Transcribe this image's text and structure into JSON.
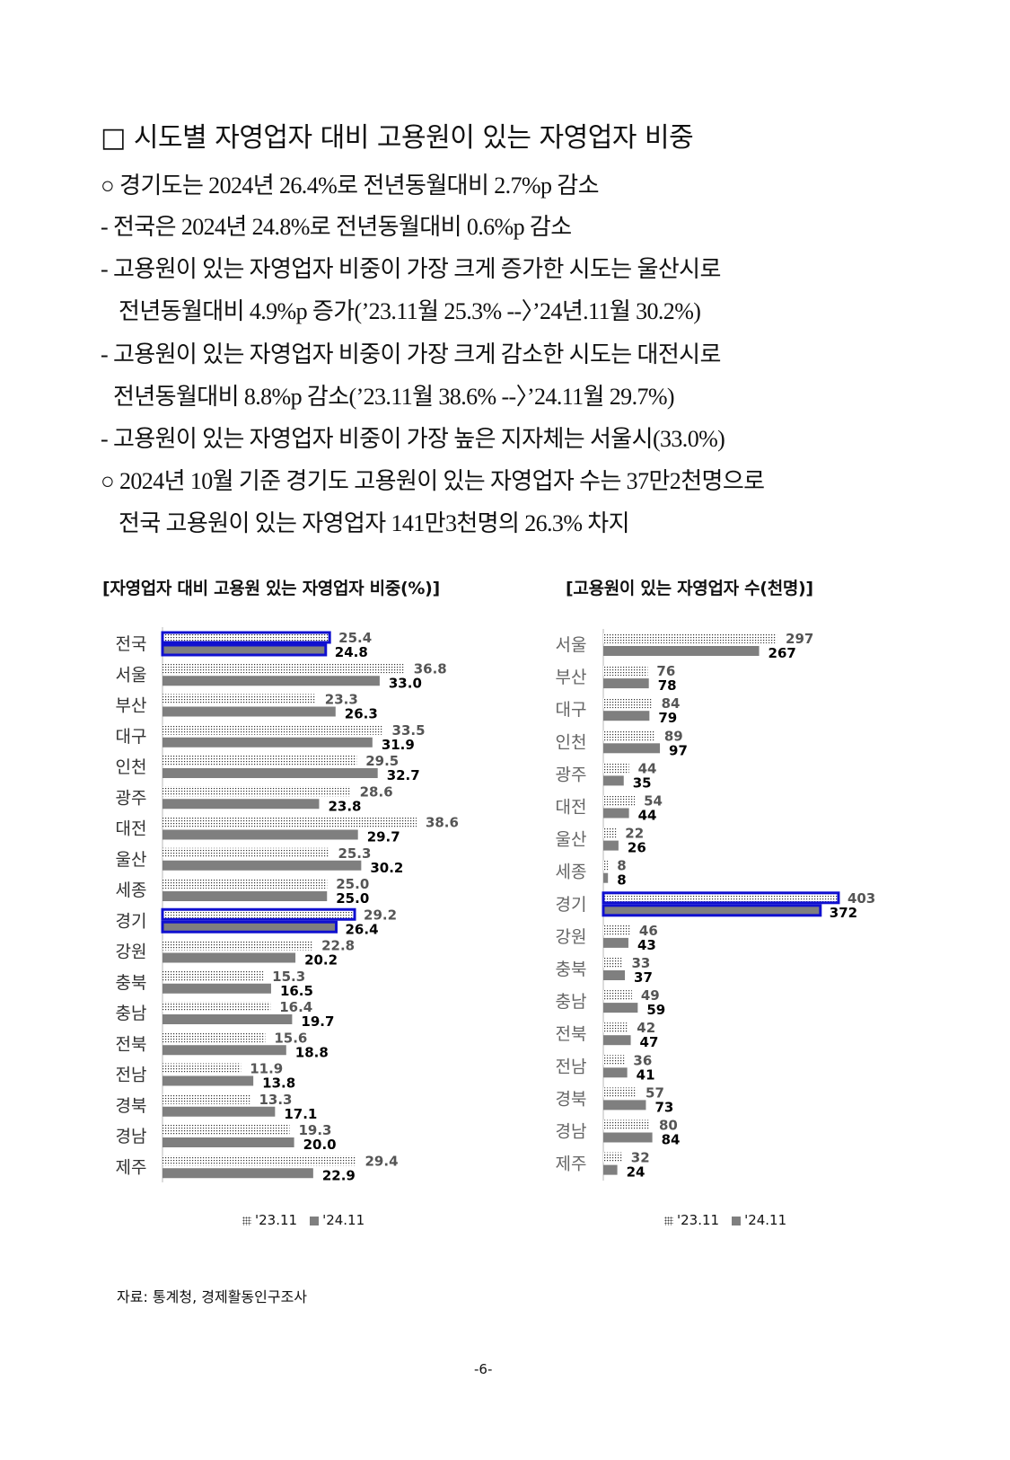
{
  "heading": "□ 시도별 자영업자 대비 고용원이 있는 자영업자 비중",
  "body_lines": [
    "○  경기도는 2024년 26.4%로 전년동월대비 2.7%p 감소",
    "- 전국은 2024년 24.8%로 전년동월대비 0.6%p 감소",
    "- 고용원이 있는 자영업자 비중이 가장 크게 증가한 시도는 울산시로",
    "전년동월대비 4.9%p 증가(’23.11월 25.3% --〉’24년.11월 30.2%)",
    "- 고용원이 있는 자영업자 비중이 가장 크게 감소한 시도는 대전시로",
    "전년동월대비 8.8%p 감소(’23.11월 38.6% --〉’24.11월 29.7%)",
    "- 고용원이 있는 자영업자 비중이 가장 높은 지자체는 서울시(33.0%)",
    "○  2024년 10월 기준 경기도 고용원이 있는 자영업자 수는 37만2천명으로",
    "전국 고용원이 있는 자영업자 141만3천명의 26.3% 차지"
  ],
  "source": "자료: 통계청, 경제활동인구조사",
  "page_number": "-6-",
  "colors": {
    "highlight": "#1010d0",
    "bar_2411": "#7f7f7f",
    "label_2311": "#555555"
  },
  "chart_data": [
    {
      "type": "bar",
      "orientation": "horizontal",
      "title": "[자영업자 대비 고용원 있는 자영업자  비중(%)]",
      "categories": [
        "전국",
        "서울",
        "부산",
        "대구",
        "인천",
        "광주",
        "대전",
        "울산",
        "세종",
        "경기",
        "강원",
        "충북",
        "충남",
        "전북",
        "전남",
        "경북",
        "경남",
        "제주"
      ],
      "highlighted": [
        "전국",
        "경기"
      ],
      "series": [
        {
          "name": "'23.11",
          "pattern": "dotted",
          "values": [
            25.4,
            36.8,
            23.3,
            33.5,
            29.5,
            28.6,
            38.6,
            25.3,
            25.0,
            29.2,
            22.8,
            15.3,
            16.4,
            15.6,
            11.9,
            13.3,
            19.3,
            29.4
          ]
        },
        {
          "name": "'24.11",
          "pattern": "solid",
          "values": [
            24.8,
            33.0,
            26.3,
            31.9,
            32.7,
            23.8,
            29.7,
            30.2,
            25.0,
            26.4,
            20.2,
            16.5,
            19.7,
            18.8,
            13.8,
            17.1,
            20.0,
            22.9
          ]
        }
      ],
      "legend": "bottom",
      "grid": false
    },
    {
      "type": "bar",
      "orientation": "horizontal",
      "title": "[고용원이 있는 자영업자 수(천명)]",
      "categories": [
        "서울",
        "부산",
        "대구",
        "인천",
        "광주",
        "대전",
        "울산",
        "세종",
        "경기",
        "강원",
        "충북",
        "충남",
        "전북",
        "전남",
        "경북",
        "경남",
        "제주"
      ],
      "highlighted": [
        "경기"
      ],
      "series": [
        {
          "name": "'23.11",
          "pattern": "dotted",
          "values": [
            297,
            76,
            84,
            89,
            44,
            54,
            22,
            8,
            403,
            46,
            33,
            49,
            42,
            36,
            57,
            80,
            32
          ]
        },
        {
          "name": "'24.11",
          "pattern": "solid",
          "values": [
            267,
            78,
            79,
            97,
            35,
            44,
            26,
            8,
            372,
            43,
            37,
            59,
            47,
            41,
            73,
            84,
            24
          ]
        }
      ],
      "legend": "bottom",
      "grid": false
    }
  ]
}
